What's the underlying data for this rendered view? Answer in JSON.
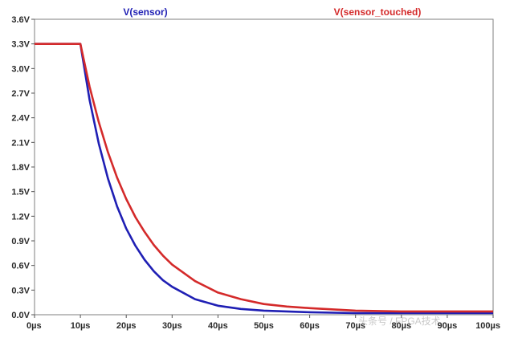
{
  "chart_data": {
    "type": "line",
    "title": "",
    "xlabel": "",
    "ylabel": "",
    "xlim": [
      0,
      100
    ],
    "ylim": [
      0,
      3.6
    ],
    "grid": false,
    "legend_placement": "top",
    "x_tick_labels": [
      "0µs",
      "10µs",
      "20µs",
      "30µs",
      "40µs",
      "50µs",
      "60µs",
      "70µs",
      "80µs",
      "90µs",
      "100µs"
    ],
    "y_tick_labels": [
      "0.0V",
      "0.3V",
      "0.6V",
      "0.9V",
      "1.2V",
      "1.5V",
      "1.8V",
      "2.1V",
      "2.4V",
      "2.7V",
      "3.0V",
      "3.3V",
      "3.6V"
    ],
    "x_ticks": [
      0,
      10,
      20,
      30,
      40,
      50,
      60,
      70,
      80,
      90,
      100
    ],
    "y_ticks": [
      0,
      0.3,
      0.6,
      0.9,
      1.2,
      1.5,
      1.8,
      2.1,
      2.4,
      2.7,
      3.0,
      3.3,
      3.6
    ],
    "series": [
      {
        "name": "V(sensor)",
        "color": "#1f1fb4",
        "x": [
          0,
          10,
          12,
          14,
          16,
          18,
          20,
          22,
          24,
          26,
          28,
          30,
          35,
          40,
          45,
          50,
          55,
          60,
          70,
          80,
          90,
          100
        ],
        "y": [
          3.3,
          3.3,
          2.62,
          2.09,
          1.66,
          1.32,
          1.05,
          0.84,
          0.67,
          0.53,
          0.42,
          0.34,
          0.19,
          0.11,
          0.07,
          0.05,
          0.04,
          0.03,
          0.02,
          0.02,
          0.02,
          0.02
        ]
      },
      {
        "name": "V(sensor_touched)",
        "color": "#d42a2a",
        "x": [
          0,
          10,
          12,
          14,
          16,
          18,
          20,
          22,
          24,
          26,
          28,
          30,
          35,
          40,
          45,
          50,
          55,
          60,
          70,
          80,
          90,
          100
        ],
        "y": [
          3.3,
          3.3,
          2.78,
          2.35,
          1.98,
          1.67,
          1.41,
          1.19,
          1.01,
          0.85,
          0.72,
          0.61,
          0.41,
          0.27,
          0.19,
          0.13,
          0.1,
          0.08,
          0.05,
          0.04,
          0.04,
          0.04
        ]
      }
    ]
  },
  "watermark_text": "头条号 / FPGA技术"
}
